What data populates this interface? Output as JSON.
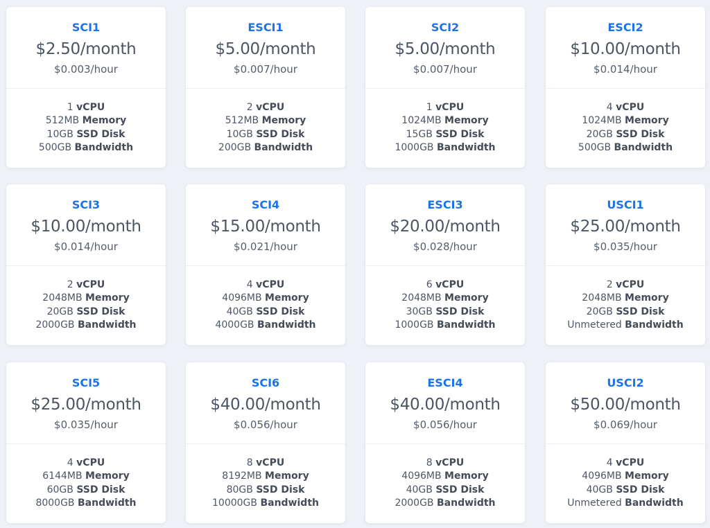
{
  "colors": {
    "background": "#eef1f5",
    "card": "#ffffff",
    "plan_name": "#1a73e8",
    "text": "#4b5563"
  },
  "labels": {
    "cpu": "vCPU",
    "memory": "Memory",
    "disk": "SSD Disk",
    "bandwidth": "Bandwidth"
  },
  "plans": [
    {
      "name": "SCI1",
      "price_month": "$2.50/month",
      "price_hour": "$0.003/hour",
      "cpu": "1",
      "memory": "512MB",
      "disk": "10GB",
      "bandwidth": "500GB"
    },
    {
      "name": "ESCI1",
      "price_month": "$5.00/month",
      "price_hour": "$0.007/hour",
      "cpu": "2",
      "memory": "512MB",
      "disk": "10GB",
      "bandwidth": "200GB"
    },
    {
      "name": "SCI2",
      "price_month": "$5.00/month",
      "price_hour": "$0.007/hour",
      "cpu": "1",
      "memory": "1024MB",
      "disk": "15GB",
      "bandwidth": "1000GB"
    },
    {
      "name": "ESCI2",
      "price_month": "$10.00/month",
      "price_hour": "$0.014/hour",
      "cpu": "4",
      "memory": "1024MB",
      "disk": "20GB",
      "bandwidth": "500GB"
    },
    {
      "name": "SCI3",
      "price_month": "$10.00/month",
      "price_hour": "$0.014/hour",
      "cpu": "2",
      "memory": "2048MB",
      "disk": "20GB",
      "bandwidth": "2000GB"
    },
    {
      "name": "SCI4",
      "price_month": "$15.00/month",
      "price_hour": "$0.021/hour",
      "cpu": "4",
      "memory": "4096MB",
      "disk": "40GB",
      "bandwidth": "4000GB"
    },
    {
      "name": "ESCI3",
      "price_month": "$20.00/month",
      "price_hour": "$0.028/hour",
      "cpu": "6",
      "memory": "2048MB",
      "disk": "30GB",
      "bandwidth": "1000GB"
    },
    {
      "name": "USCI1",
      "price_month": "$25.00/month",
      "price_hour": "$0.035/hour",
      "cpu": "2",
      "memory": "2048MB",
      "disk": "20GB",
      "bandwidth": "Unmetered"
    },
    {
      "name": "SCI5",
      "price_month": "$25.00/month",
      "price_hour": "$0.035/hour",
      "cpu": "4",
      "memory": "6144MB",
      "disk": "60GB",
      "bandwidth": "8000GB"
    },
    {
      "name": "SCI6",
      "price_month": "$40.00/month",
      "price_hour": "$0.056/hour",
      "cpu": "8",
      "memory": "8192MB",
      "disk": "80GB",
      "bandwidth": "10000GB"
    },
    {
      "name": "ESCI4",
      "price_month": "$40.00/month",
      "price_hour": "$0.056/hour",
      "cpu": "8",
      "memory": "4096MB",
      "disk": "40GB",
      "bandwidth": "2000GB"
    },
    {
      "name": "USCI2",
      "price_month": "$50.00/month",
      "price_hour": "$0.069/hour",
      "cpu": "4",
      "memory": "4096MB",
      "disk": "40GB",
      "bandwidth": "Unmetered"
    }
  ]
}
